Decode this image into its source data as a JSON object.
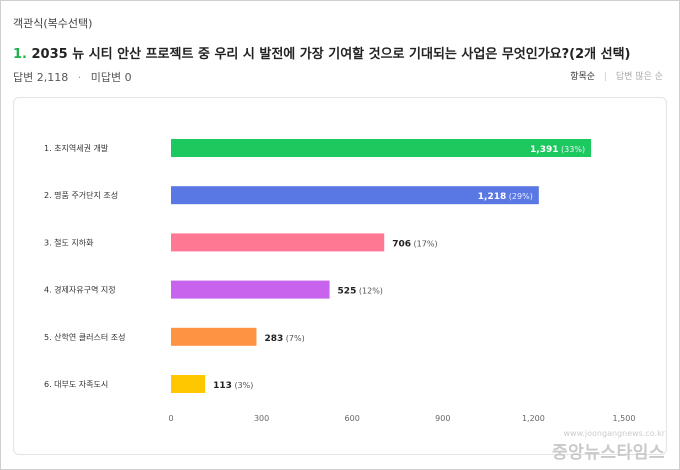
{
  "question": {
    "type_label": "객관식(복수선택)",
    "number": "1.",
    "title": "2035 뉴 시티 안산 프로젝트 중 우리 시 발전에 가장 기여할 것으로 기대되는 사업은 무엇인가요?(2개 선택)",
    "answered": "답변 2,118",
    "unanswered": "미답변 0"
  },
  "sort_options": {
    "active": "항목순",
    "inactive": "답변 많은 순"
  },
  "chart_data": {
    "type": "bar",
    "orientation": "horizontal",
    "categories": [
      "1. 초지역세권 개발",
      "2. 명품 주거단지 조성",
      "3. 철도 지하화",
      "4. 경제자유구역 지정",
      "5. 산학연 클러스터 조성",
      "6. 대부도 자족도시"
    ],
    "values": [
      1391,
      1218,
      706,
      525,
      283,
      113
    ],
    "value_labels": [
      "1,391",
      "1,218",
      "706",
      "525",
      "283",
      "113"
    ],
    "percent_labels": [
      "(33%)",
      "(29%)",
      "(17%)",
      "(12%)",
      "(7%)",
      "(3%)"
    ],
    "colors": [
      "#1dc95f",
      "#5a78e4",
      "#ff7893",
      "#c763ed",
      "#ff9344",
      "#ffc700"
    ],
    "xlim": [
      0,
      1500
    ],
    "xticks": [
      "0",
      "300",
      "600",
      "900",
      "1,200",
      "1,500"
    ],
    "grid": false
  },
  "watermark": {
    "url": "www.joongangnews.co.kr",
    "brand": "중앙뉴스타임스"
  }
}
